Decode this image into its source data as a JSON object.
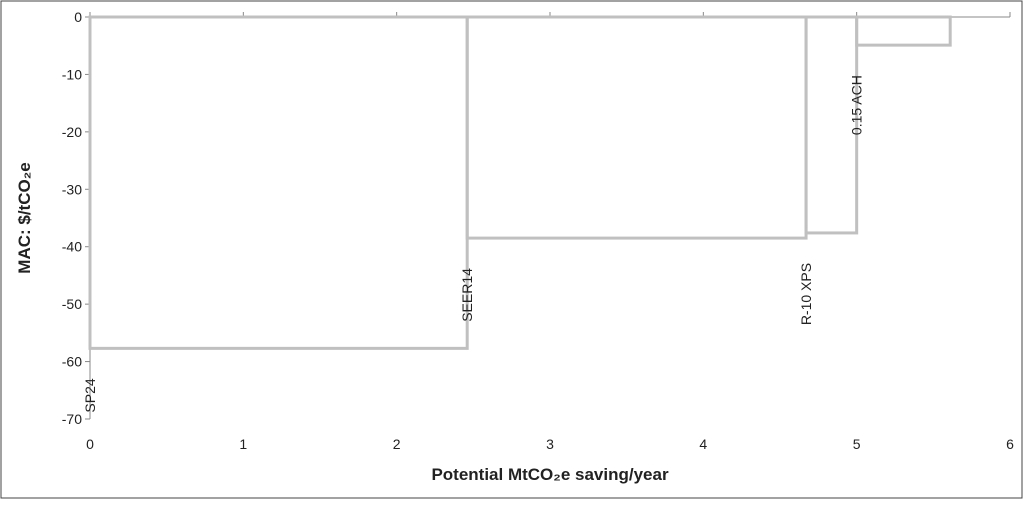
{
  "chart_data": {
    "type": "mac",
    "xlabel": "Potential MtCO₂e saving/year",
    "ylabel": "MAC: $/tCO₂e",
    "categories": [
      "SP24",
      "SEER14",
      "R-10 XPS",
      "0.15 ACH"
    ],
    "widths": [
      2.46,
      2.21,
      0.33,
      0.61
    ],
    "values": [
      -57.7,
      -38.5,
      -37.6,
      -4.9
    ],
    "color": "#c0c0c0",
    "xlim": [
      0,
      6
    ],
    "xticks": [
      0,
      1,
      2,
      3,
      4,
      5,
      6
    ],
    "ylim": [
      -70,
      0
    ],
    "yticks": [
      0,
      -10,
      -20,
      -30,
      -40,
      -50,
      -60,
      -70
    ]
  }
}
